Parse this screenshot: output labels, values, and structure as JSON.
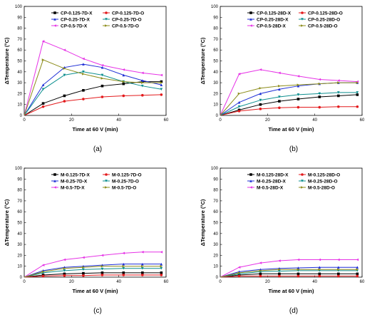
{
  "series_style": [
    {
      "color": "#000000",
      "marker": "square"
    },
    {
      "color": "#e31a1c",
      "marker": "circle"
    },
    {
      "color": "#1f2fd6",
      "marker": "triangle-up"
    },
    {
      "color": "#0d8f8f",
      "marker": "triangle-down"
    },
    {
      "color": "#e633e6",
      "marker": "triangle-left"
    },
    {
      "color": "#8c8c1a",
      "marker": "triangle-right"
    }
  ],
  "chart_data": [
    {
      "type": "line",
      "caption": "(a)",
      "xlabel": "Time at 60 V (min)",
      "ylabel": "ΔTemperature (°C)",
      "xlim": [
        0,
        60
      ],
      "ylim": [
        0,
        100
      ],
      "xticks": [
        0,
        20,
        40,
        60
      ],
      "yticks": [
        0,
        10,
        20,
        30,
        40,
        50,
        60,
        70,
        80,
        90,
        100
      ],
      "grid": false,
      "legend": "top-right",
      "x": [
        0,
        8,
        17,
        25,
        33,
        42,
        50,
        58
      ],
      "series": [
        {
          "name": "CP-0.125-7D-X",
          "values": [
            0,
            11,
            18,
            23,
            27,
            29,
            31,
            31
          ]
        },
        {
          "name": "CP-0.125-7D-O",
          "values": [
            0,
            8,
            13,
            15,
            17,
            18,
            18.5,
            19
          ]
        },
        {
          "name": "CP-0.25-7D-X",
          "values": [
            0,
            28,
            44,
            47,
            44,
            37,
            32,
            28
          ]
        },
        {
          "name": "CP-0.25-7D-O",
          "values": [
            0,
            24,
            37,
            40,
            37,
            31,
            27,
            24
          ]
        },
        {
          "name": "CP-0.5-7D-X",
          "values": [
            0,
            68,
            60,
            52,
            46,
            42,
            39,
            37
          ]
        },
        {
          "name": "CP-0.5-7D-O",
          "values": [
            0,
            51,
            43,
            38,
            34,
            31,
            30,
            30
          ]
        }
      ]
    },
    {
      "type": "line",
      "caption": "(b)",
      "xlabel": "Time at 60 V (min)",
      "ylabel": "ΔTemperature (°C)",
      "xlim": [
        0,
        60
      ],
      "ylim": [
        0,
        100
      ],
      "xticks": [
        0,
        20,
        40,
        60
      ],
      "yticks": [
        0,
        10,
        20,
        30,
        40,
        50,
        60,
        70,
        80,
        90,
        100
      ],
      "grid": false,
      "legend": "top-right",
      "x": [
        0,
        8,
        17,
        25,
        33,
        42,
        50,
        58
      ],
      "series": [
        {
          "name": "CP-0.125-28D-X",
          "values": [
            0,
            5,
            10,
            13,
            15,
            17,
            18,
            19
          ]
        },
        {
          "name": "CP-0.125-28D-O",
          "values": [
            0,
            4,
            6,
            7,
            7.5,
            7.5,
            8,
            8
          ]
        },
        {
          "name": "CP-0.25-28D-X",
          "values": [
            0,
            12,
            20,
            24,
            27,
            29,
            30,
            30
          ]
        },
        {
          "name": "CP-0.25-28D-O",
          "values": [
            0,
            8,
            14,
            17,
            19,
            20,
            21,
            21
          ]
        },
        {
          "name": "CP-0.5-28D-X",
          "values": [
            0,
            38,
            42,
            39,
            36,
            33,
            32,
            31
          ]
        },
        {
          "name": "CP-0.5-28D-O",
          "values": [
            0,
            20,
            25,
            27,
            28,
            29,
            30,
            30
          ]
        }
      ]
    },
    {
      "type": "line",
      "caption": "(c)",
      "xlabel": "Time at 60 V (min)",
      "ylabel": "ΔTemperature (°C)",
      "xlim": [
        0,
        60
      ],
      "ylim": [
        0,
        100
      ],
      "xticks": [
        0,
        20,
        40,
        60
      ],
      "yticks": [
        0,
        10,
        20,
        30,
        40,
        50,
        60,
        70,
        80,
        90,
        100
      ],
      "grid": false,
      "legend": "top-right",
      "x": [
        0,
        8,
        17,
        25,
        33,
        42,
        50,
        58
      ],
      "series": [
        {
          "name": "M-0.125-7D-X",
          "values": [
            0,
            2,
            3,
            3.5,
            4,
            4,
            4,
            4
          ]
        },
        {
          "name": "M-0.125-7D-O",
          "values": [
            0,
            1,
            1.5,
            1.5,
            2,
            2,
            2,
            2
          ]
        },
        {
          "name": "M-0.25-7D-X",
          "values": [
            0,
            6,
            9,
            10,
            11,
            12,
            12,
            12
          ]
        },
        {
          "name": "M-0.25-7D-O",
          "values": [
            0,
            4,
            6,
            7,
            7.5,
            8,
            8,
            8
          ]
        },
        {
          "name": "M-0.5-7D-X",
          "values": [
            0,
            11,
            16,
            18,
            20,
            22,
            23,
            23
          ]
        },
        {
          "name": "M-0.5-7D-O",
          "values": [
            0,
            5,
            8,
            9,
            10,
            10,
            10,
            10
          ]
        }
      ]
    },
    {
      "type": "line",
      "caption": "(d)",
      "xlabel": "Time at 60 V (min)",
      "ylabel": "ΔTemperature (°C)",
      "xlim": [
        0,
        60
      ],
      "ylim": [
        0,
        100
      ],
      "xticks": [
        0,
        20,
        40,
        60
      ],
      "yticks": [
        0,
        10,
        20,
        30,
        40,
        50,
        60,
        70,
        80,
        90,
        100
      ],
      "grid": false,
      "legend": "top-right",
      "x": [
        0,
        8,
        17,
        25,
        33,
        42,
        50,
        58
      ],
      "series": [
        {
          "name": "M-0.125-28D-X",
          "values": [
            0,
            2,
            3,
            3,
            3,
            3,
            3,
            3
          ]
        },
        {
          "name": "M-0.125-28D-O",
          "values": [
            0,
            1,
            1,
            1,
            1,
            1,
            1,
            1
          ]
        },
        {
          "name": "M-0.25-28D-X",
          "values": [
            0,
            5,
            7,
            8,
            8.5,
            9,
            9,
            9
          ]
        },
        {
          "name": "M-0.25-28D-O",
          "values": [
            0,
            3,
            5,
            5.5,
            6,
            6,
            6,
            6
          ]
        },
        {
          "name": "M-0.5-28D-X",
          "values": [
            0,
            9,
            13,
            15,
            16,
            16,
            16,
            16
          ]
        },
        {
          "name": "M-0.5-28D-O",
          "values": [
            0,
            4,
            6,
            7,
            7,
            7,
            7,
            7
          ]
        }
      ]
    }
  ]
}
